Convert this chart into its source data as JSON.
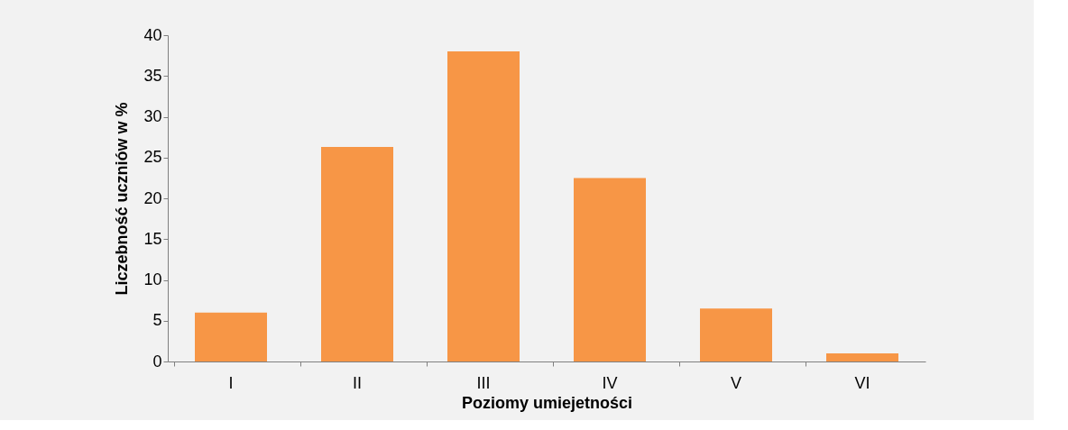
{
  "chart_data": {
    "type": "bar",
    "xlabel": "Poziomy umiejetności",
    "ylabel": "Liczebność uczniów w %",
    "categories": [
      "I",
      "II",
      "III",
      "IV",
      "V",
      "VI"
    ],
    "values": [
      6.0,
      26.3,
      38.0,
      22.5,
      6.5,
      1.0
    ],
    "color": "#f79646",
    "ylim": [
      0,
      40
    ],
    "yticks": [
      0,
      5,
      10,
      15,
      20,
      25,
      30,
      35,
      40
    ],
    "grid": false
  }
}
